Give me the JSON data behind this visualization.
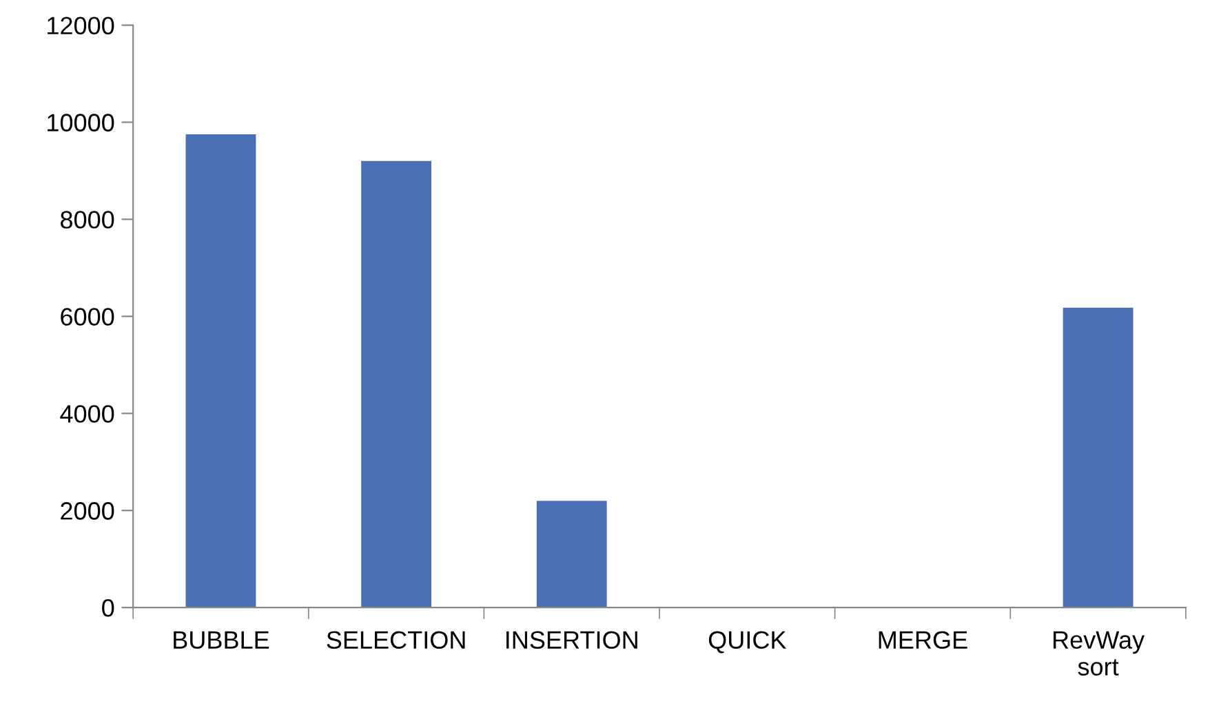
{
  "chart_data": {
    "type": "bar",
    "categories": [
      "BUBBLE",
      "SELECTION",
      "INSERTION",
      "QUICK",
      "MERGE",
      "RevWay sort"
    ],
    "values": [
      9750,
      9200,
      2200,
      0,
      0,
      6180
    ],
    "color": "#4a6fb5",
    "ylim": [
      0,
      12000
    ],
    "yticks": [
      0,
      2000,
      4000,
      6000,
      8000,
      10000,
      12000
    ],
    "grid": false,
    "legend": false
  }
}
